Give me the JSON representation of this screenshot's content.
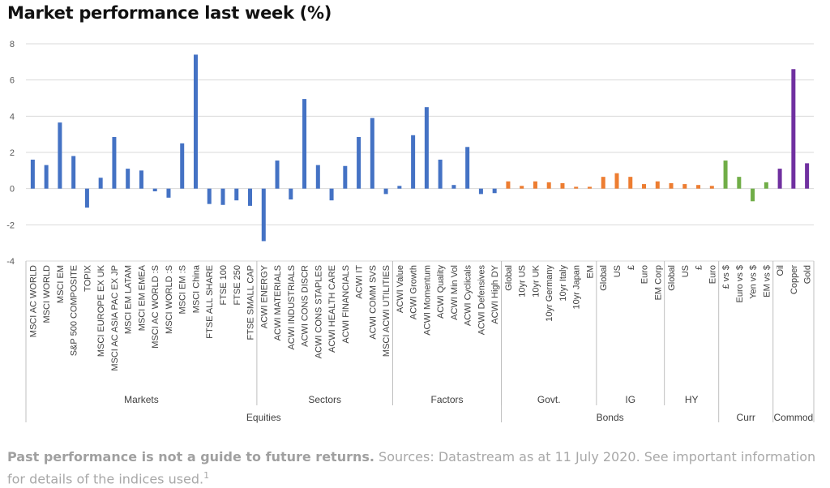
{
  "title": "Market performance last week (%)",
  "footnote": {
    "bold": "Past performance is not a guide to future returns.",
    "text": " Sources: Datastream as at 11 July 2020. See important information for details of the indices used.",
    "sup": "1"
  },
  "colors": {
    "Equities": "#4472c4",
    "Bonds": "#ed7d31",
    "Curr": "#70ad47",
    "Commod": "#7030a0",
    "grid": "#d9d9d9",
    "sep": "#bfbfbf"
  },
  "chart_data": {
    "type": "bar",
    "title": "Market performance last week (%)",
    "ylim": [
      -4,
      8
    ],
    "yticks": [
      -4,
      -2,
      0,
      2,
      4,
      6,
      8
    ],
    "grid": true,
    "categories": [
      "MSCI AC WORLD",
      "MSCI WORLD",
      "MSCI EM",
      "S&P 500 COMPOSITE",
      "TOPIX",
      "MSCI EUROPE EX UK",
      "MSCI AC ASIA PAC EX JP",
      "MSCI EM LATAM",
      "MSCI EM EMEA",
      "MSCI AC WORLD :S",
      "MSCI WORLD :S",
      "MSCI EM :S",
      "MSCI China",
      "FTSE ALL SHARE",
      "FTSE 100",
      "FTSE 250",
      "FTSE SMALL CAP",
      "ACWI ENERGY",
      "ACWI MATERIALS",
      "ACWI INDUSTRIALS",
      "ACWI CONS DISCR",
      "ACWI CONS STAPLES",
      "ACWI HEALTH CARE",
      "ACWI FINANCIALS",
      "ACWI IT",
      "ACWI COMM SVS",
      "MSCI ACWI UTILITIES",
      "ACWI Value",
      "ACWI Growth",
      "ACWI Momentum",
      "ACWI Quality",
      "ACWI Min Vol",
      "ACWI Cyclicals",
      "ACWI Defensives",
      "ACWI High DY",
      "Global",
      "10yr US",
      "10yr UK",
      "10yr Germany",
      "10yr Italy",
      "10yr Japan",
      "EM",
      "Global",
      "US",
      "£",
      "Euro",
      "EM Corp",
      "Global",
      "US",
      "£",
      "Euro",
      "£ vs $",
      "Euro vs $",
      "Yen vs $",
      "EM vs $",
      "Oil",
      "Copper",
      "Gold"
    ],
    "values": [
      1.6,
      1.3,
      3.65,
      1.8,
      -1.05,
      0.6,
      2.85,
      1.1,
      1.0,
      -0.15,
      -0.5,
      2.5,
      7.4,
      -0.85,
      -0.9,
      -0.65,
      -0.95,
      -2.9,
      1.55,
      -0.6,
      4.95,
      1.3,
      -0.65,
      1.25,
      2.85,
      3.9,
      -0.3,
      0.15,
      2.95,
      4.5,
      1.6,
      0.2,
      2.3,
      -0.3,
      -0.25,
      0.4,
      0.15,
      0.4,
      0.35,
      0.3,
      0.1,
      0.1,
      0.65,
      0.85,
      0.65,
      0.25,
      0.4,
      0.3,
      0.25,
      0.2,
      0.15,
      1.55,
      0.65,
      -0.7,
      0.35,
      1.1,
      6.6,
      1.4
    ],
    "series_group": [
      "Equities",
      "Equities",
      "Equities",
      "Equities",
      "Equities",
      "Equities",
      "Equities",
      "Equities",
      "Equities",
      "Equities",
      "Equities",
      "Equities",
      "Equities",
      "Equities",
      "Equities",
      "Equities",
      "Equities",
      "Equities",
      "Equities",
      "Equities",
      "Equities",
      "Equities",
      "Equities",
      "Equities",
      "Equities",
      "Equities",
      "Equities",
      "Equities",
      "Equities",
      "Equities",
      "Equities",
      "Equities",
      "Equities",
      "Equities",
      "Equities",
      "Bonds",
      "Bonds",
      "Bonds",
      "Bonds",
      "Bonds",
      "Bonds",
      "Bonds",
      "Bonds",
      "Bonds",
      "Bonds",
      "Bonds",
      "Bonds",
      "Bonds",
      "Bonds",
      "Bonds",
      "Bonds",
      "Curr",
      "Curr",
      "Curr",
      "Curr",
      "Commod",
      "Commod",
      "Commod"
    ],
    "subgroups": [
      {
        "label": "Markets",
        "start": 0,
        "end": 16
      },
      {
        "label": "Sectors",
        "start": 17,
        "end": 26
      },
      {
        "label": "Factors",
        "start": 27,
        "end": 34
      },
      {
        "label": "Govt.",
        "start": 35,
        "end": 41
      },
      {
        "label": "IG",
        "start": 42,
        "end": 46
      },
      {
        "label": "HY",
        "start": 47,
        "end": 50
      }
    ],
    "groups": [
      {
        "label": "Equities",
        "start": 0,
        "end": 34
      },
      {
        "label": "Bonds",
        "start": 35,
        "end": 50
      },
      {
        "label": "Curr",
        "start": 51,
        "end": 54
      },
      {
        "label": "Commod",
        "start": 55,
        "end": 57
      }
    ]
  }
}
